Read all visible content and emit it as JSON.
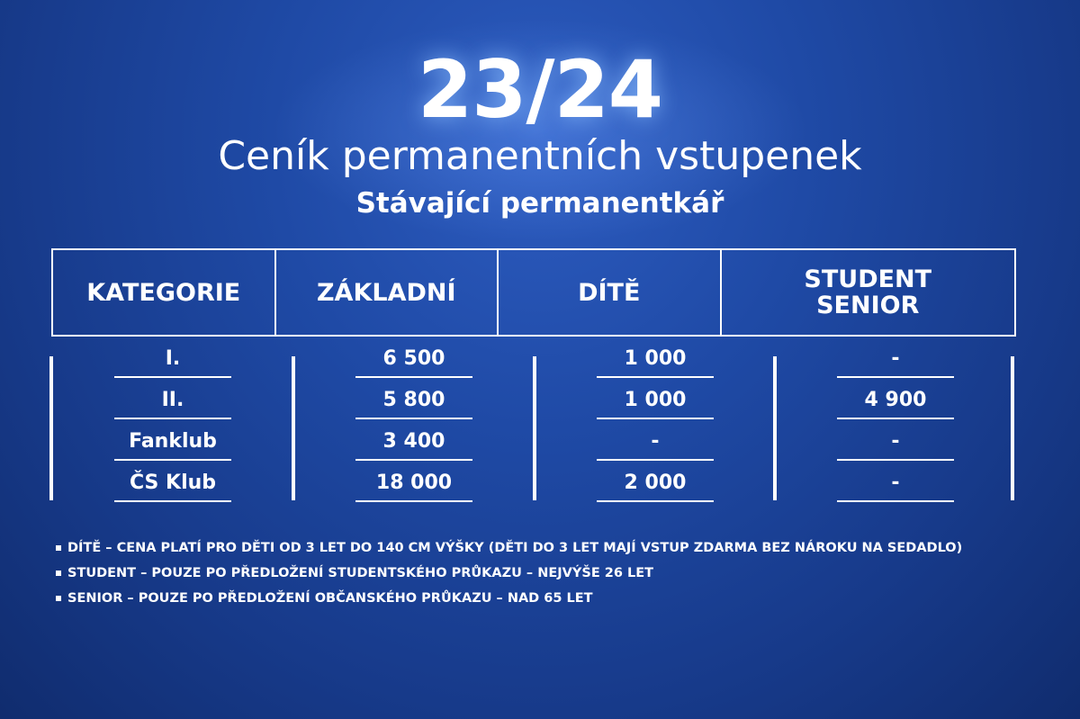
{
  "season": "23/24",
  "title": "Ceník permanentních vstupenek",
  "subtitle": "Stávající permanentkář",
  "table": {
    "headers": [
      "KATEGORIE",
      "ZÁKLADNÍ",
      "DÍTĚ",
      "STUDENT SENIOR"
    ],
    "columns": [
      [
        "I.",
        "II.",
        "Fanklub",
        "ČS Klub"
      ],
      [
        "6 500",
        "5 800",
        "3 400",
        "18 000"
      ],
      [
        "1 000",
        "1 000",
        "-",
        "2 000"
      ],
      [
        "-",
        "4 900",
        "-",
        "-"
      ]
    ]
  },
  "notes": [
    "DÍTĚ – CENA PLATÍ PRO DĚTI OD 3 LET DO 140 CM VÝŠKY (DĚTI DO 3 LET MAJÍ VSTUP ZDARMA BEZ NÁROKU NA SEDADLO)",
    "STUDENT – POUZE PO PŘEDLOŽENÍ STUDENTSKÉHO PRŮKAZU – NEJVÝŠE 26 LET",
    "SENIOR – POUZE PO PŘEDLOŽENÍ OBČANSKÉHO PRŮKAZU – NAD 65 LET"
  ],
  "colors": {
    "background": "#1f4aa6",
    "text": "#ffffff"
  }
}
